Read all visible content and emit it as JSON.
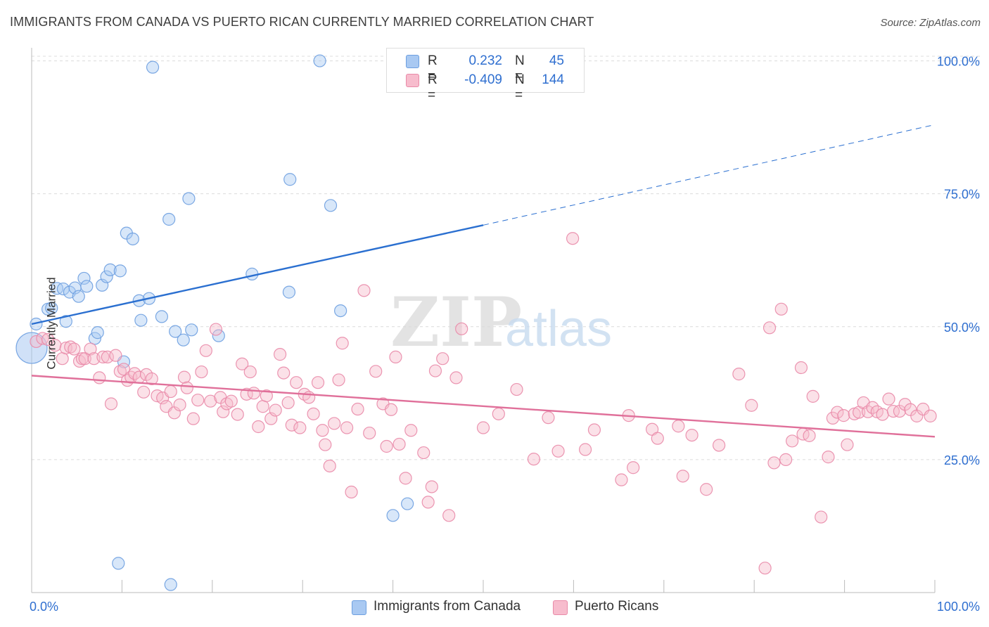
{
  "header": {
    "title": "IMMIGRANTS FROM CANADA VS PUERTO RICAN CURRENTLY MARRIED CORRELATION CHART",
    "source": "Source: ZipAtlas.com"
  },
  "watermark": {
    "zip": "ZIP",
    "atlas": "atlas"
  },
  "legend": {
    "rows": [
      {
        "r_label": "R =",
        "r_value": "0.232",
        "n_label": "N =",
        "n_value": "45",
        "color": "#a9c9f2",
        "border": "#6d9fe0"
      },
      {
        "r_label": "R =",
        "r_value": "-0.409",
        "n_label": "N =",
        "n_value": "144",
        "color": "#f7bccd",
        "border": "#e98aa8"
      }
    ]
  },
  "bottom_legend": [
    {
      "label": "Immigrants from Canada",
      "color": "#a9c9f2",
      "border": "#6d9fe0"
    },
    {
      "label": "Puerto Ricans",
      "color": "#f7bccd",
      "border": "#e98aa8"
    }
  ],
  "chart_data": {
    "type": "scatter",
    "title": "IMMIGRANTS FROM CANADA VS PUERTO RICAN CURRENTLY MARRIED CORRELATION CHART",
    "ylabel": "Currently Married",
    "xlabel": "",
    "x_tick_labels": [
      "0.0%",
      "100.0%"
    ],
    "y_tick_labels": [
      "25.0%",
      "50.0%",
      "75.0%",
      "100.0%"
    ],
    "y_ticks": [
      25,
      50,
      75,
      100
    ],
    "xlim": [
      0,
      100
    ],
    "ylim": [
      0,
      101
    ],
    "grid": true,
    "legend_position": "top-center",
    "series": [
      {
        "name": "Immigrants from Canada",
        "color": "#6d9fe0",
        "fill": "#a9c9f2",
        "line_color": "#2a6fd0",
        "trend": {
          "x0": 0,
          "y0": 50.5,
          "x1": 50,
          "y1": 69.1,
          "dash_to_x": 100,
          "dash_to_y": 88.0
        },
        "points": [
          [
            0,
            46
          ],
          [
            0.5,
            50.5
          ],
          [
            1.8,
            53.3
          ],
          [
            2.2,
            53.5
          ],
          [
            2.8,
            57.2
          ],
          [
            3.5,
            57.1
          ],
          [
            3.8,
            51.0
          ],
          [
            4.2,
            56.5
          ],
          [
            4.8,
            57.3
          ],
          [
            5.2,
            55.7
          ],
          [
            5.8,
            59.1
          ],
          [
            6.1,
            57.6
          ],
          [
            7.0,
            47.8
          ],
          [
            7.3,
            48.9
          ],
          [
            7.8,
            57.8
          ],
          [
            8.3,
            59.4
          ],
          [
            8.7,
            60.7
          ],
          [
            9.8,
            60.5
          ],
          [
            9.6,
            5.5
          ],
          [
            10.2,
            43.4
          ],
          [
            10.5,
            67.6
          ],
          [
            11.2,
            66.5
          ],
          [
            11.9,
            54.9
          ],
          [
            12.1,
            51.2
          ],
          [
            13.0,
            55.3
          ],
          [
            13.4,
            98.8
          ],
          [
            14.4,
            51.9
          ],
          [
            15.2,
            70.2
          ],
          [
            15.4,
            1.5
          ],
          [
            15.9,
            49.1
          ],
          [
            16.8,
            47.5
          ],
          [
            17.4,
            74.1
          ],
          [
            17.7,
            49.4
          ],
          [
            20.7,
            48.3
          ],
          [
            24.4,
            59.9
          ],
          [
            28.5,
            56.5
          ],
          [
            28.6,
            77.7
          ],
          [
            31.9,
            100
          ],
          [
            33.1,
            72.8
          ],
          [
            34.2,
            53.0
          ],
          [
            40.0,
            14.5
          ],
          [
            41.6,
            16.7
          ],
          [
            47.2,
            100
          ],
          [
            49.0,
            100
          ],
          [
            50.0,
            100
          ]
        ]
      },
      {
        "name": "Puerto Ricans",
        "color": "#e98aa8",
        "fill": "#f7bccd",
        "line_color": "#e0709a",
        "trend": {
          "x0": 0,
          "y0": 40.8,
          "x1": 100,
          "y1": 29.3
        },
        "points": [
          [
            0.5,
            47.2
          ],
          [
            1.2,
            47.8
          ],
          [
            1.8,
            47.6
          ],
          [
            2.6,
            46.5
          ],
          [
            3.4,
            44.0
          ],
          [
            3.8,
            46.0
          ],
          [
            4.3,
            46.2
          ],
          [
            4.7,
            45.8
          ],
          [
            5.3,
            43.5
          ],
          [
            5.6,
            44.0
          ],
          [
            5.9,
            44.0
          ],
          [
            6.5,
            45.8
          ],
          [
            6.9,
            44.0
          ],
          [
            7.5,
            40.4
          ],
          [
            7.9,
            44.3
          ],
          [
            8.4,
            44.3
          ],
          [
            8.8,
            35.5
          ],
          [
            9.3,
            44.6
          ],
          [
            9.8,
            41.6
          ],
          [
            10.2,
            42.0
          ],
          [
            10.6,
            39.9
          ],
          [
            11.0,
            40.5
          ],
          [
            11.4,
            41.2
          ],
          [
            11.9,
            40.5
          ],
          [
            12.4,
            37.7
          ],
          [
            12.7,
            41.0
          ],
          [
            13.3,
            40.2
          ],
          [
            13.9,
            37.0
          ],
          [
            14.5,
            36.6
          ],
          [
            14.9,
            35.0
          ],
          [
            15.4,
            37.8
          ],
          [
            15.8,
            33.8
          ],
          [
            16.4,
            35.3
          ],
          [
            16.9,
            40.5
          ],
          [
            17.2,
            38.5
          ],
          [
            17.9,
            32.7
          ],
          [
            18.4,
            36.2
          ],
          [
            18.8,
            41.5
          ],
          [
            19.3,
            45.5
          ],
          [
            19.8,
            36.0
          ],
          [
            20.4,
            49.5
          ],
          [
            20.9,
            36.7
          ],
          [
            21.2,
            34.0
          ],
          [
            21.6,
            35.5
          ],
          [
            22.1,
            36.0
          ],
          [
            22.8,
            33.5
          ],
          [
            23.3,
            43.0
          ],
          [
            23.8,
            37.3
          ],
          [
            24.2,
            41.5
          ],
          [
            24.6,
            37.5
          ],
          [
            25.1,
            31.2
          ],
          [
            25.6,
            35.0
          ],
          [
            26.0,
            37.0
          ],
          [
            26.5,
            32.7
          ],
          [
            27.0,
            34.3
          ],
          [
            27.5,
            44.8
          ],
          [
            27.9,
            41.3
          ],
          [
            28.4,
            35.7
          ],
          [
            28.8,
            31.5
          ],
          [
            29.3,
            39.5
          ],
          [
            29.7,
            31.0
          ],
          [
            30.2,
            37.3
          ],
          [
            30.7,
            36.7
          ],
          [
            31.2,
            33.6
          ],
          [
            31.7,
            39.5
          ],
          [
            32.2,
            30.5
          ],
          [
            32.5,
            27.8
          ],
          [
            33.0,
            23.8
          ],
          [
            33.5,
            31.8
          ],
          [
            34.0,
            40.0
          ],
          [
            34.4,
            46.9
          ],
          [
            34.9,
            31.0
          ],
          [
            35.4,
            18.9
          ],
          [
            36.1,
            34.5
          ],
          [
            36.8,
            56.8
          ],
          [
            37.4,
            30.0
          ],
          [
            38.1,
            41.6
          ],
          [
            38.9,
            35.5
          ],
          [
            39.3,
            27.5
          ],
          [
            39.8,
            34.4
          ],
          [
            40.3,
            44.3
          ],
          [
            40.7,
            27.9
          ],
          [
            41.4,
            21.5
          ],
          [
            42.0,
            30.5
          ],
          [
            43.4,
            26.3
          ],
          [
            43.9,
            17.0
          ],
          [
            44.3,
            19.9
          ],
          [
            44.7,
            41.7
          ],
          [
            45.5,
            44.0
          ],
          [
            46.2,
            14.5
          ],
          [
            47.0,
            40.4
          ],
          [
            47.6,
            49.6
          ],
          [
            50.0,
            31.0
          ],
          [
            51.7,
            33.6
          ],
          [
            53.7,
            38.2
          ],
          [
            55.6,
            25.1
          ],
          [
            57.2,
            32.9
          ],
          [
            58.3,
            26.6
          ],
          [
            59.9,
            66.6
          ],
          [
            61.3,
            26.9
          ],
          [
            62.3,
            30.6
          ],
          [
            65.3,
            21.2
          ],
          [
            66.1,
            33.3
          ],
          [
            66.6,
            23.5
          ],
          [
            68.7,
            30.7
          ],
          [
            69.3,
            29.0
          ],
          [
            71.6,
            31.3
          ],
          [
            72.1,
            21.9
          ],
          [
            73.1,
            29.6
          ],
          [
            74.7,
            19.4
          ],
          [
            76.1,
            27.7
          ],
          [
            78.3,
            41.1
          ],
          [
            79.7,
            35.2
          ],
          [
            81.2,
            4.6
          ],
          [
            81.7,
            49.8
          ],
          [
            82.2,
            24.4
          ],
          [
            83.0,
            53.3
          ],
          [
            83.5,
            25.0
          ],
          [
            84.2,
            28.5
          ],
          [
            85.2,
            42.3
          ],
          [
            85.4,
            29.8
          ],
          [
            86.1,
            29.5
          ],
          [
            86.5,
            36.9
          ],
          [
            87.4,
            14.2
          ],
          [
            88.2,
            25.5
          ],
          [
            88.7,
            32.8
          ],
          [
            89.2,
            33.9
          ],
          [
            89.9,
            33.3
          ],
          [
            90.3,
            27.8
          ],
          [
            91.1,
            33.6
          ],
          [
            91.6,
            33.9
          ],
          [
            92.1,
            35.7
          ],
          [
            92.6,
            34.0
          ],
          [
            93.1,
            34.8
          ],
          [
            93.6,
            34.0
          ],
          [
            94.2,
            33.5
          ],
          [
            94.9,
            36.4
          ],
          [
            95.4,
            34.1
          ],
          [
            96.1,
            34.1
          ],
          [
            96.7,
            35.4
          ],
          [
            97.3,
            34.4
          ],
          [
            98.0,
            33.2
          ],
          [
            98.7,
            34.5
          ],
          [
            99.5,
            33.2
          ]
        ]
      }
    ]
  }
}
